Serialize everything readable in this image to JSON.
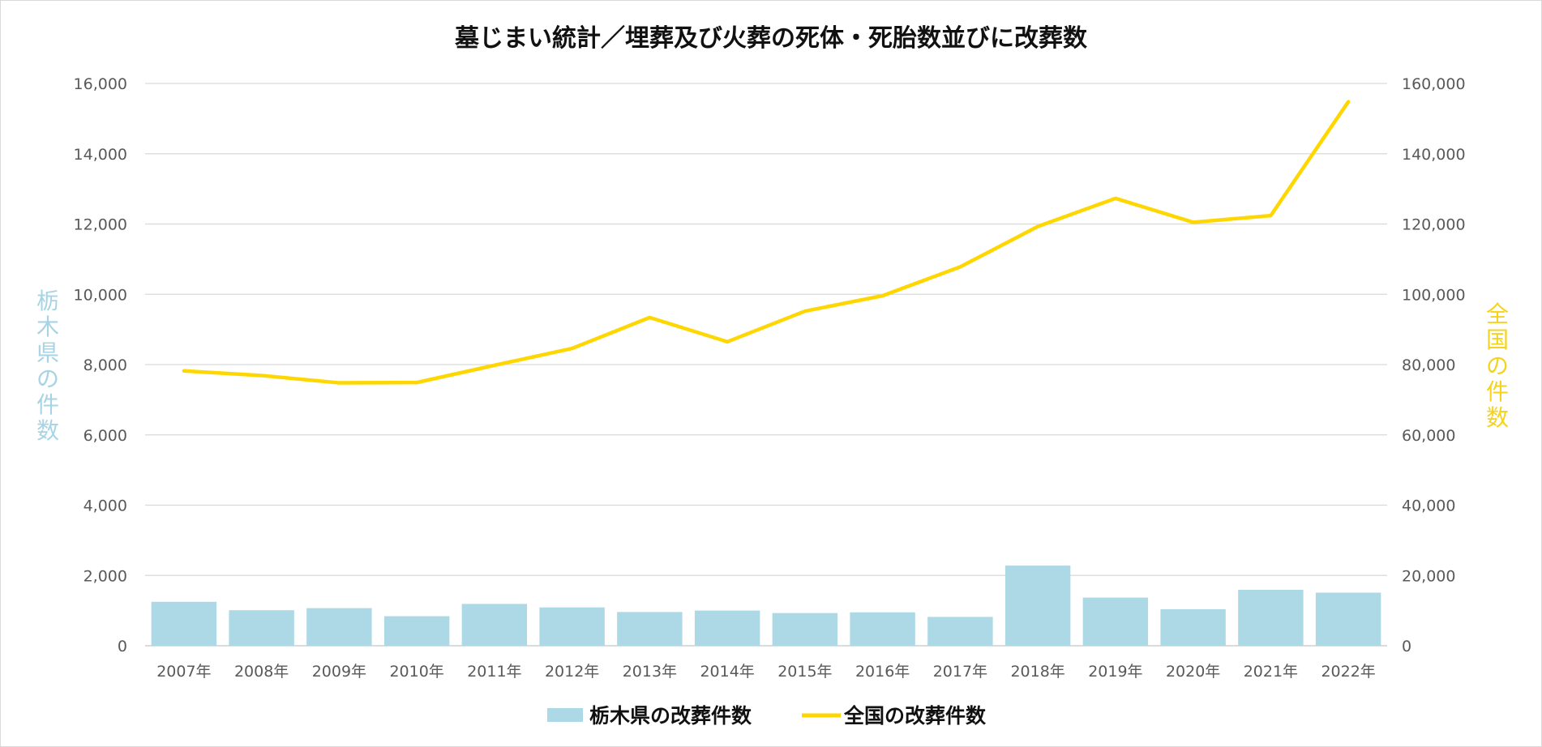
{
  "chart_data": {
    "type": "bar+line",
    "title": "墓じまい統計／埋葬及び火葬の死体・死胎数並びに改葬数",
    "categories": [
      "2007年",
      "2008年",
      "2009年",
      "2010年",
      "2011年",
      "2012年",
      "2013年",
      "2014年",
      "2015年",
      "2016年",
      "2017年",
      "2018年",
      "2019年",
      "2020年",
      "2021年",
      "2022年"
    ],
    "series": [
      {
        "name": "栃木県の改葬件数",
        "type": "bar",
        "axis": "left",
        "color": "#add8e6",
        "values": [
          1250,
          1010,
          1070,
          840,
          1190,
          1090,
          960,
          1000,
          930,
          950,
          820,
          2280,
          1370,
          1040,
          1590,
          1510
        ]
      },
      {
        "name": "全国の改葬件数",
        "type": "line",
        "axis": "right",
        "color": "#ffd700",
        "values": [
          78200,
          76900,
          74800,
          74900,
          79800,
          84600,
          93400,
          86500,
          95200,
          99600,
          107800,
          119300,
          127300,
          120500,
          122400,
          154800
        ]
      }
    ],
    "y_left": {
      "label": "栃木県の件数",
      "ylim": [
        0,
        16000
      ],
      "ticks": [
        "0",
        "2,000",
        "4,000",
        "6,000",
        "8,000",
        "10,000",
        "12,000",
        "14,000",
        "16,000"
      ],
      "tick_values": [
        0,
        2000,
        4000,
        6000,
        8000,
        10000,
        12000,
        14000,
        16000
      ]
    },
    "y_right": {
      "label": "全国の件数",
      "ylim": [
        0,
        160000
      ],
      "ticks": [
        "0",
        "20,000",
        "40,000",
        "60,000",
        "80,000",
        "100,000",
        "120,000",
        "140,000",
        "160,000"
      ],
      "tick_values": [
        0,
        20000,
        40000,
        60000,
        80000,
        100000,
        120000,
        140000,
        160000
      ]
    },
    "grid": true,
    "legend_position": "bottom"
  }
}
